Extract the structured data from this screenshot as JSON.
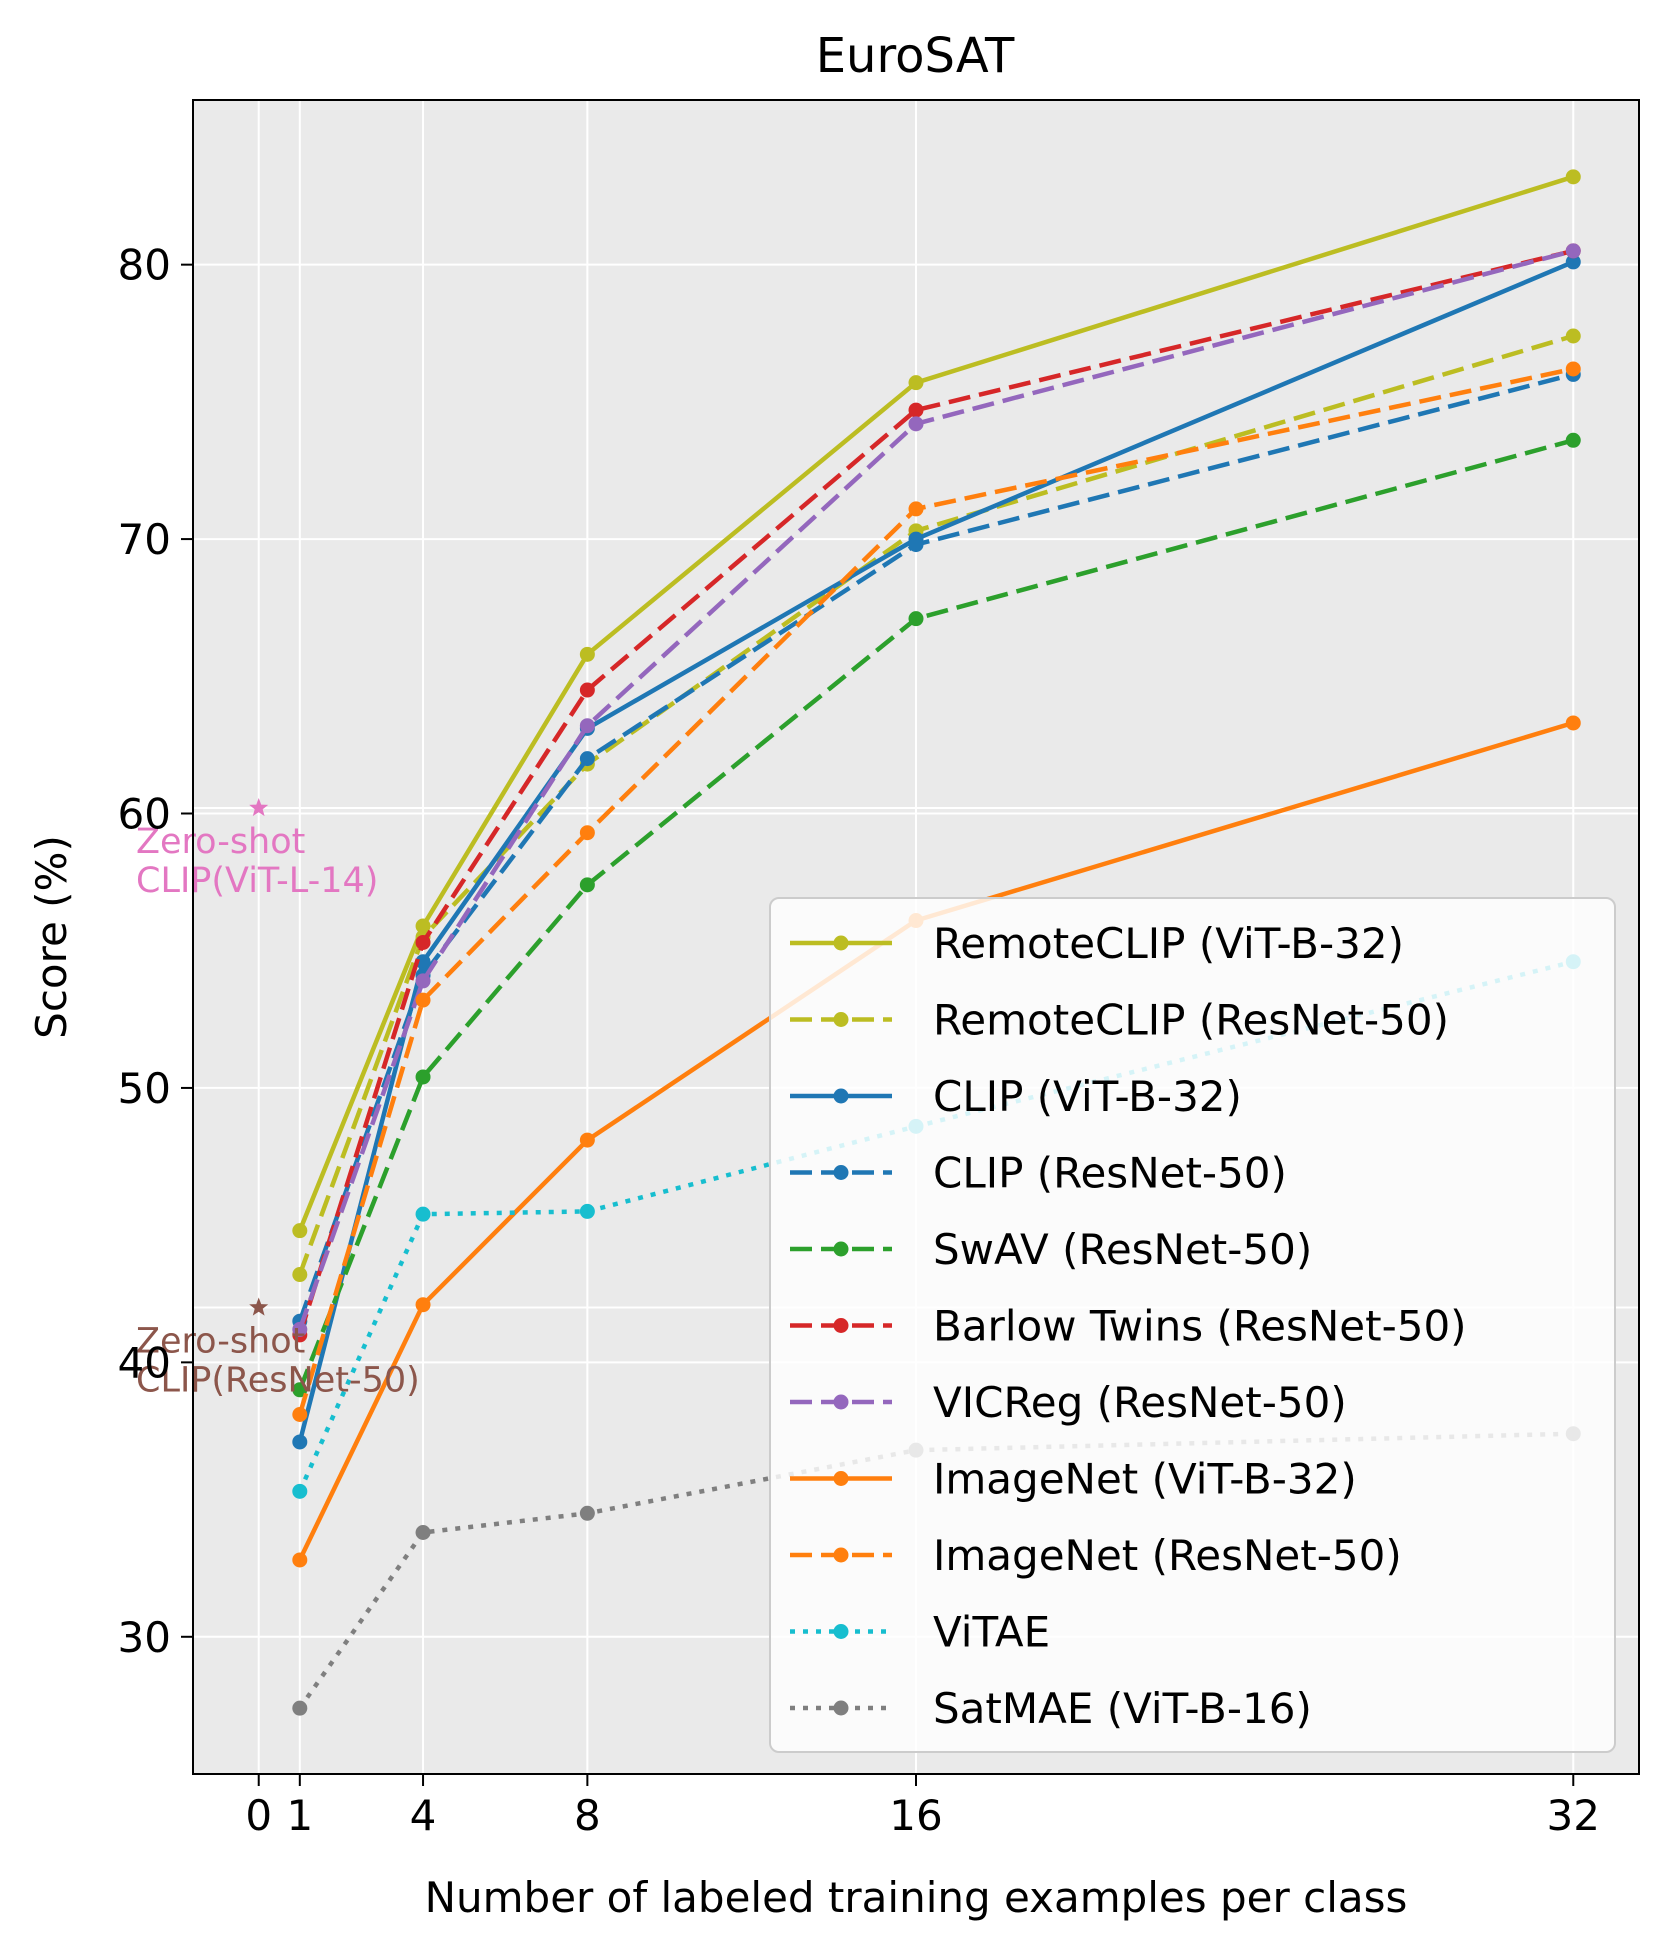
{
  "chart_data": {
    "type": "line",
    "title": "EuroSAT",
    "xlabel": "Number of labeled training examples per class",
    "ylabel": "Score (%)",
    "xlim": [
      -1.6,
      33.6
    ],
    "ylim": [
      25.0,
      86.0
    ],
    "xticks": [
      0,
      1,
      4,
      8,
      16,
      32
    ],
    "yticks": [
      30,
      40,
      50,
      60,
      70,
      80
    ],
    "x": [
      1,
      4,
      8,
      16,
      32
    ],
    "grid": true,
    "legend_position": "lower-right",
    "series": [
      {
        "name": "RemoteCLIP (ViT-B-32)",
        "color": "#bcbd22",
        "style": "solid",
        "values": [
          44.8,
          55.9,
          65.8,
          75.7,
          83.2
        ]
      },
      {
        "name": "RemoteCLIP (ResNet-50)",
        "color": "#bcbd22",
        "style": "dashed",
        "values": [
          43.2,
          55.5,
          61.8,
          70.3,
          77.4
        ]
      },
      {
        "name": "CLIP (ViT-B-32)",
        "color": "#1f77b4",
        "style": "solid",
        "values": [
          37.1,
          54.6,
          63.1,
          70.0,
          80.1
        ]
      },
      {
        "name": "CLIP (ResNet-50)",
        "color": "#1f77b4",
        "style": "dashed",
        "values": [
          41.5,
          54.1,
          62.0,
          69.8,
          76.0
        ]
      },
      {
        "name": "SwAV (ResNet-50)",
        "color": "#2ca02c",
        "style": "dashed",
        "values": [
          39.0,
          50.4,
          57.4,
          67.1,
          73.6
        ]
      },
      {
        "name": "Barlow Twins (ResNet-50)",
        "color": "#d62728",
        "style": "dashed",
        "values": [
          41.0,
          55.3,
          64.5,
          74.7,
          80.5
        ]
      },
      {
        "name": "VICReg (ResNet-50)",
        "color": "#9467bd",
        "style": "dashed",
        "values": [
          41.2,
          53.9,
          63.2,
          74.2,
          80.5
        ]
      },
      {
        "name": "ImageNet (ViT-B-32)",
        "color": "#ff7f0e",
        "style": "solid",
        "values": [
          32.8,
          42.1,
          48.1,
          56.1,
          63.3
        ]
      },
      {
        "name": "ImageNet (ResNet-50)",
        "color": "#ff7f0e",
        "style": "dashed",
        "values": [
          38.1,
          53.2,
          59.3,
          71.1,
          76.2
        ]
      },
      {
        "name": "ViTAE",
        "color": "#17becf",
        "style": "dotted",
        "values": [
          35.3,
          45.4,
          45.5,
          48.6,
          54.6
        ]
      },
      {
        "name": "SatMAE (ViT-B-16)",
        "color": "#7f7f7f",
        "style": "dotted",
        "values": [
          27.4,
          33.8,
          34.5,
          36.8,
          37.4
        ]
      }
    ],
    "annotations": [
      {
        "marker_x": 0,
        "marker_y": 60.2,
        "line1": "Zero-shot",
        "line2": "CLIP(ViT-L-14)",
        "color": "#e377c2"
      },
      {
        "marker_x": 0,
        "marker_y": 42.0,
        "line1": "Zero-shot",
        "line2": "CLIP(ResNet-50)",
        "color": "#8c564b"
      }
    ]
  }
}
